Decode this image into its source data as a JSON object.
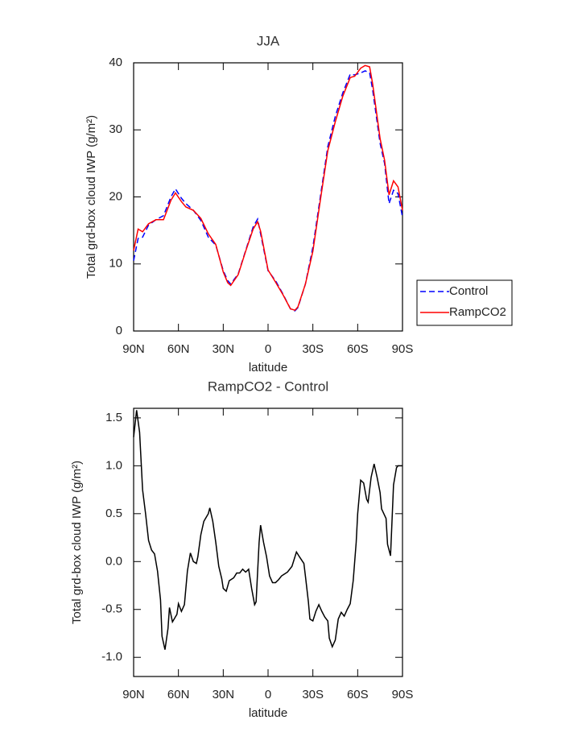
{
  "chart_data": [
    {
      "type": "line",
      "title": "JJA",
      "x_label": "latitude",
      "y_label": "Total grd-box cloud IWP (g/m²)",
      "x": [
        90,
        87,
        84,
        80,
        75,
        70,
        65,
        62,
        58,
        55,
        50,
        45,
        40,
        35,
        30,
        27,
        25,
        20,
        15,
        10,
        7,
        5,
        0,
        -5,
        -10,
        -15,
        -18,
        -20,
        -25,
        -30,
        -35,
        -40,
        -45,
        -50,
        -55,
        -58,
        -62,
        -65,
        -68,
        -70,
        -75,
        -78,
        -81,
        -84,
        -87,
        -90
      ],
      "series": [
        {
          "name": "Control",
          "color": "#0000ff",
          "line_style": "dashed",
          "values": [
            10.5,
            13.8,
            14,
            15.8,
            16.6,
            17.2,
            20,
            21.2,
            19.8,
            19,
            18,
            16.5,
            14,
            12.8,
            9,
            7.5,
            7,
            8.5,
            12,
            15.5,
            16.7,
            14.5,
            9,
            7.5,
            5.5,
            3.3,
            3,
            3.5,
            7,
            12.5,
            20,
            27.5,
            32,
            35.5,
            38.3,
            38.2,
            38.5,
            38.8,
            38.5,
            36,
            28,
            25,
            19,
            21,
            20.5,
            17
          ]
        },
        {
          "name": "RampCO2",
          "color": "#ff0000",
          "line_style": "solid",
          "values": [
            12,
            15.2,
            14.8,
            16,
            16.6,
            16.6,
            19.5,
            20.6,
            19.3,
            18.5,
            18,
            16.8,
            14.5,
            12.9,
            8.8,
            7.2,
            6.8,
            8.4,
            11.9,
            15.2,
            16.3,
            14.9,
            9.1,
            7.3,
            5.4,
            3.3,
            3.1,
            3.6,
            7,
            11.9,
            19.5,
            26.9,
            31.2,
            35,
            37.8,
            38,
            39.2,
            39.6,
            39.4,
            36.9,
            28.7,
            25.5,
            20.3,
            22.4,
            21.5,
            18
          ]
        }
      ],
      "xlim": [
        90,
        -90
      ],
      "xticks": [
        {
          "value": 90,
          "label": "90N"
        },
        {
          "value": 60,
          "label": "60N"
        },
        {
          "value": 30,
          "label": "30N"
        },
        0,
        {
          "value": -30,
          "label": "30S"
        },
        {
          "value": -60,
          "label": "60S"
        },
        {
          "value": -90,
          "label": "90S"
        }
      ],
      "ylim": [
        0,
        40
      ],
      "yticks": [
        0,
        10,
        20,
        30,
        40
      ],
      "legend": "right"
    },
    {
      "type": "line",
      "title": "RampCO2 - Control",
      "x_label": "latitude",
      "y_label": "Total grd-box cloud IWP (g/m²)",
      "x": [
        90,
        88,
        86,
        84,
        82,
        80,
        78,
        76,
        74,
        72,
        71,
        69,
        67,
        66,
        64,
        61,
        60,
        58,
        56,
        54,
        52,
        50,
        48,
        47,
        45,
        43,
        40,
        39,
        37,
        35,
        33,
        31,
        30,
        28,
        26,
        23,
        21,
        19,
        17,
        15,
        13,
        11,
        9,
        8,
        6,
        5,
        3,
        1,
        -1,
        -3,
        -5,
        -7,
        -9,
        -11,
        -13,
        -16,
        -18,
        -19,
        -21,
        -24,
        -25,
        -27,
        -28,
        -30,
        -32,
        -34,
        -36,
        -38,
        -40,
        -41,
        -43,
        -45,
        -47,
        -49,
        -51,
        -53,
        -55,
        -57,
        -59,
        -60,
        -62,
        -64,
        -66,
        -67,
        -69,
        -71,
        -73,
        -75,
        -76,
        -79,
        -80,
        -82,
        -84,
        -86,
        -87,
        -90
      ],
      "values": [
        1.3,
        1.58,
        1.35,
        0.75,
        0.5,
        0.22,
        0.12,
        0.08,
        -0.1,
        -0.4,
        -0.78,
        -0.92,
        -0.7,
        -0.48,
        -0.63,
        -0.55,
        -0.44,
        -0.52,
        -0.45,
        -0.1,
        0.09,
        0.0,
        -0.02,
        0.05,
        0.28,
        0.42,
        0.5,
        0.56,
        0.42,
        0.2,
        -0.05,
        -0.18,
        -0.28,
        -0.31,
        -0.2,
        -0.17,
        -0.12,
        -0.12,
        -0.08,
        -0.11,
        -0.08,
        -0.28,
        -0.45,
        -0.42,
        0.2,
        0.38,
        0.2,
        0.05,
        -0.15,
        -0.22,
        -0.22,
        -0.19,
        -0.15,
        -0.13,
        -0.11,
        -0.05,
        0.05,
        0.1,
        0.05,
        -0.02,
        -0.15,
        -0.42,
        -0.6,
        -0.62,
        -0.52,
        -0.45,
        -0.52,
        -0.58,
        -0.62,
        -0.8,
        -0.89,
        -0.82,
        -0.6,
        -0.53,
        -0.57,
        -0.5,
        -0.44,
        -0.2,
        0.2,
        0.5,
        0.85,
        0.82,
        0.65,
        0.62,
        0.88,
        1.02,
        0.88,
        0.72,
        0.55,
        0.45,
        0.18,
        0.06,
        0.8,
        0.98,
        1.0,
        1.0
      ],
      "color": "#000000",
      "xlim": [
        90,
        -90
      ],
      "xticks": [
        {
          "value": 90,
          "label": "90N"
        },
        {
          "value": 60,
          "label": "60N"
        },
        {
          "value": 30,
          "label": "30N"
        },
        0,
        {
          "value": -30,
          "label": "30S"
        },
        {
          "value": -60,
          "label": "60S"
        },
        {
          "value": -90,
          "label": "90S"
        }
      ],
      "ylim": [
        -1.2,
        1.6
      ],
      "yticks": [
        {
          "value": -1,
          "label": "-1.0"
        },
        -0.5,
        {
          "value": 0,
          "label": "0.0"
        },
        0.5,
        {
          "value": 1,
          "label": "1.0"
        },
        1.5
      ]
    }
  ]
}
